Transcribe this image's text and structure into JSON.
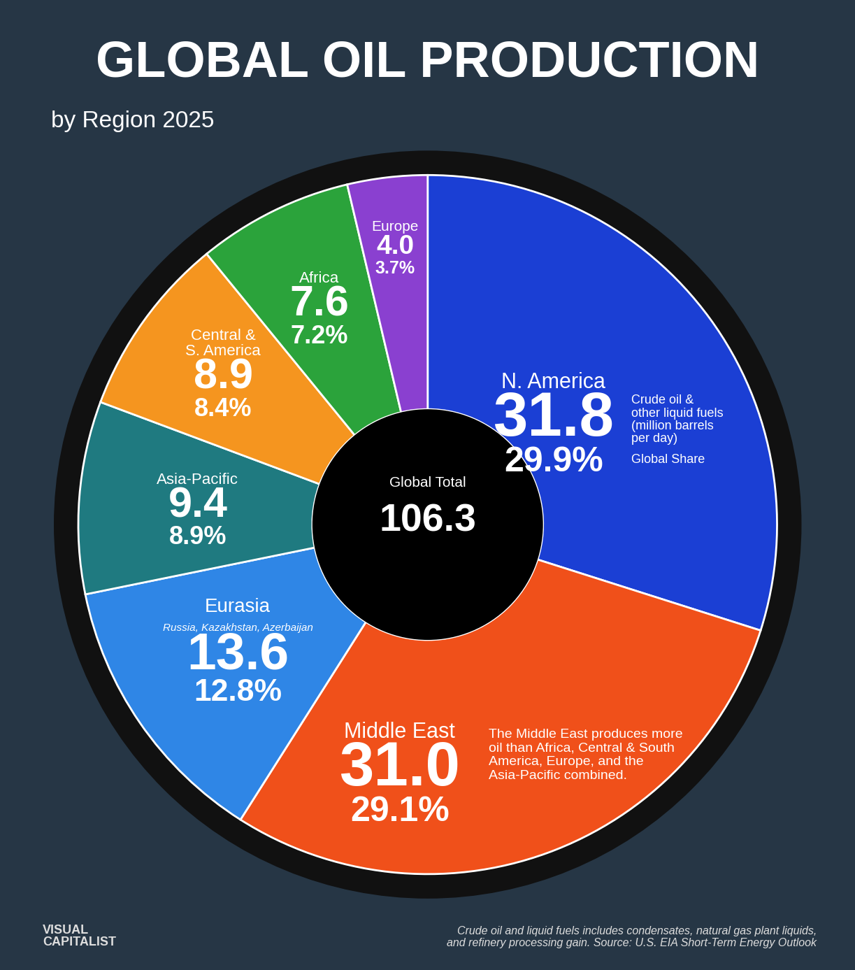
{
  "chart_data": {
    "type": "pie",
    "title": "GLOBAL OIL PRODUCTION",
    "subtitle": "by Region 2025",
    "categories": [
      "N. America",
      "Middle East",
      "Eurasia",
      "Asia-Pacific",
      "Central &\nS. America",
      "Africa",
      "Europe"
    ],
    "values": [
      31.8,
      31.0,
      13.6,
      9.4,
      8.9,
      7.6,
      4.0
    ],
    "shares": [
      29.9,
      29.1,
      12.8,
      8.9,
      8.4,
      7.2,
      3.7
    ],
    "share_labels": [
      "29.9%",
      "29.1%",
      "12.8%",
      "8.9%",
      "8.4%",
      "7.2%",
      "3.7%"
    ],
    "colors": [
      "#1b3fd4",
      "#f0501a",
      "#2f86e6",
      "#1f7a80",
      "#f5951f",
      "#2ba33b",
      "#8a40d0"
    ],
    "data_labels": true,
    "center": {
      "label": "Global Total",
      "value": 106.3
    },
    "annotations": [
      {
        "category": "N. America",
        "text": "Crude oil &\nother liquid fuels\n(million barrels\nper day)"
      },
      {
        "category": "N. America",
        "text": "Global Share"
      },
      {
        "category": "Eurasia",
        "text": "Russia, Kazakhstan, Azerbaijan"
      },
      {
        "category": "Middle East",
        "text": "The Middle East produces more\noil than Africa, Central & South\nAmerica, Europe, and the\nAsia-Pacific combined."
      }
    ],
    "source": "Crude oil and liquid fuels includes condensates, natural gas plant liquids,\nand refinery processing gain. Source: U.S. EIA Short-Term Energy Outlook",
    "credit": "VISUAL\nCAPITALIST"
  }
}
